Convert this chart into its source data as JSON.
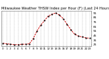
{
  "title": "Milwaukee Weather THSW Index per Hour (F) (Last 24 Hours)",
  "hours": [
    0,
    1,
    2,
    3,
    4,
    5,
    6,
    7,
    8,
    9,
    10,
    11,
    12,
    13,
    14,
    15,
    16,
    17,
    18,
    19,
    20,
    21,
    22,
    23
  ],
  "values": [
    28,
    27,
    26,
    25,
    25,
    26,
    26,
    27,
    38,
    55,
    68,
    78,
    88,
    92,
    95,
    90,
    82,
    70,
    58,
    48,
    44,
    42,
    40,
    39
  ],
  "line_color": "#cc0000",
  "marker_color": "#000000",
  "bg_color": "#ffffff",
  "grid_color": "#aaaaaa",
  "title_color": "#000000",
  "ylim": [
    22,
    100
  ],
  "yticks": [
    25,
    35,
    45,
    55,
    65,
    75,
    85,
    95
  ],
  "ytick_labels": [
    "25",
    "35",
    "45",
    "55",
    "65",
    "75",
    "85",
    "95"
  ],
  "xticks": [
    0,
    1,
    2,
    3,
    4,
    5,
    6,
    7,
    8,
    9,
    10,
    11,
    12,
    13,
    14,
    15,
    16,
    17,
    18,
    19,
    20,
    21,
    22,
    23
  ],
  "title_fontsize": 3.8,
  "tick_fontsize": 3.0,
  "line_width": 0.7,
  "marker_size": 1.2
}
